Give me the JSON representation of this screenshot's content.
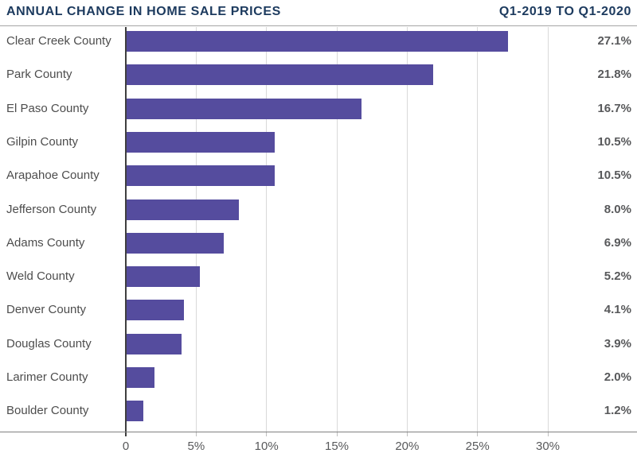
{
  "header": {
    "title_left": "ANNUAL CHANGE IN HOME SALE PRICES",
    "title_right": "Q1-2019 TO Q1-2020"
  },
  "chart_data": {
    "type": "bar",
    "orientation": "horizontal",
    "title": "ANNUAL CHANGE IN HOME SALE PRICES",
    "subtitle": "Q1-2019 TO Q1-2020",
    "categories": [
      "Clear Creek County",
      "Park County",
      "El Paso County",
      "Gilpin County",
      "Arapahoe County",
      "Jefferson County",
      "Adams County",
      "Weld County",
      "Denver County",
      "Douglas County",
      "Larimer County",
      "Boulder County"
    ],
    "values": [
      27.1,
      21.8,
      16.7,
      10.5,
      10.5,
      8.0,
      6.9,
      5.2,
      4.1,
      3.9,
      2.0,
      1.2
    ],
    "value_labels": [
      "27.1%",
      "21.8%",
      "16.7%",
      "10.5%",
      "10.5%",
      "8.0%",
      "6.9%",
      "5.2%",
      "4.1%",
      "3.9%",
      "2.0%",
      "1.2%"
    ],
    "xlabel": "",
    "ylabel": "",
    "xlim": [
      0,
      33.2
    ],
    "x_ticks": [
      {
        "value": 0,
        "label": "0"
      },
      {
        "value": 5,
        "label": "5%"
      },
      {
        "value": 10,
        "label": "10%"
      },
      {
        "value": 15,
        "label": "15%"
      },
      {
        "value": 20,
        "label": "20%"
      },
      {
        "value": 25,
        "label": "25%"
      },
      {
        "value": 30,
        "label": "30%"
      }
    ],
    "grid": "vertical-gridlines-on",
    "legend": "none"
  },
  "colors": {
    "bar": "#554C9E",
    "title": "#1C3A5E",
    "header_rule": "#A6A6A6",
    "gridline": "#D9D9D9",
    "zero_axis": "#3F3F3F",
    "baseline": "#7F7F7F",
    "category_label": "#4D4D4D",
    "value_label": "#58595B",
    "tick_label": "#58595B",
    "background": "#FFFFFF"
  }
}
